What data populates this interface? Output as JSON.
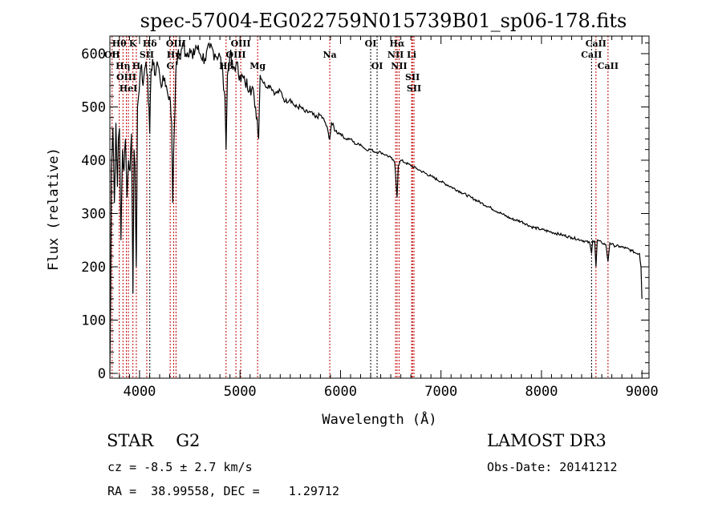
{
  "chart_data": {
    "type": "line",
    "title": "spec-57004-EG022759N015739B01_sp06-178.fits",
    "xlabel": "Wavelength (Å)",
    "ylabel": "Flux (relative)",
    "xlim": [
      3705,
      9070
    ],
    "ylim": [
      -9,
      633
    ],
    "xticks": [
      4000,
      5000,
      6000,
      7000,
      8000,
      9000
    ],
    "xtick_labels": [
      "4000",
      "5000",
      "6000",
      "7000",
      "8000",
      "9000"
    ],
    "yticks": [
      0,
      100,
      200,
      300,
      400,
      500,
      600
    ],
    "ytick_labels": [
      "0",
      "100",
      "200",
      "300",
      "400",
      "500",
      "600"
    ],
    "grid": false,
    "series": [
      {
        "name": "flux",
        "color": "#000000",
        "x": [
          3705,
          3712,
          3720,
          3735,
          3750,
          3765,
          3780,
          3790,
          3800,
          3815,
          3830,
          3845,
          3860,
          3875,
          3890,
          3905,
          3920,
          3934,
          3945,
          3955,
          3968,
          3980,
          3990,
          4005,
          4020,
          4035,
          4050,
          4065,
          4080,
          4101,
          4115,
          4130,
          4150,
          4175,
          4200,
          4225,
          4250,
          4275,
          4300,
          4320,
          4330,
          4340,
          4360,
          4380,
          4400,
          4430,
          4460,
          4500,
          4530,
          4560,
          4600,
          4650,
          4700,
          4750,
          4800,
          4830,
          4850,
          4861,
          4875,
          4900,
          4930,
          4960,
          5000,
          5050,
          5100,
          5140,
          5170,
          5185,
          5200,
          5250,
          5300,
          5350,
          5400,
          5450,
          5500,
          5550,
          5600,
          5650,
          5700,
          5750,
          5800,
          5850,
          5880,
          5893,
          5910,
          5950,
          6000,
          6050,
          6100,
          6150,
          6200,
          6250,
          6300,
          6350,
          6400,
          6450,
          6500,
          6540,
          6563,
          6575,
          6600,
          6650,
          6700,
          6750,
          6800,
          6900,
          7000,
          7100,
          7200,
          7300,
          7400,
          7500,
          7600,
          7700,
          7800,
          7900,
          8000,
          8100,
          8200,
          8300,
          8400,
          8480,
          8498,
          8510,
          8530,
          8542,
          8555,
          8600,
          8640,
          8662,
          8680,
          8720,
          8780,
          8840,
          8900,
          8950,
          8975,
          8990,
          9000
        ],
        "y": [
          0,
          140,
          380,
          460,
          320,
          470,
          350,
          440,
          460,
          250,
          420,
          380,
          440,
          330,
          400,
          380,
          450,
          150,
          420,
          390,
          200,
          500,
          520,
          560,
          580,
          540,
          570,
          585,
          560,
          450,
          570,
          590,
          560,
          585,
          560,
          540,
          555,
          530,
          520,
          470,
          320,
          420,
          560,
          600,
          590,
          620,
          600,
          610,
          590,
          615,
          600,
          590,
          610,
          600,
          595,
          560,
          520,
          420,
          560,
          600,
          570,
          580,
          560,
          545,
          540,
          520,
          480,
          440,
          560,
          540,
          540,
          525,
          530,
          510,
          515,
          500,
          500,
          490,
          490,
          480,
          485,
          470,
          450,
          440,
          470,
          455,
          450,
          440,
          440,
          430,
          430,
          420,
          420,
          415,
          415,
          410,
          405,
          395,
          330,
          390,
          400,
          395,
          390,
          385,
          380,
          370,
          360,
          350,
          340,
          330,
          320,
          310,
          300,
          290,
          285,
          275,
          270,
          265,
          260,
          255,
          250,
          245,
          225,
          250,
          248,
          200,
          250,
          245,
          242,
          210,
          245,
          240,
          238,
          235,
          230,
          225,
          225,
          200,
          140
        ]
      }
    ],
    "lines": [
      {
        "label": "OII",
        "wl": 3727,
        "row": 1,
        "color": "#c00000"
      },
      {
        "label": "Hθ",
        "wl": 3798,
        "row": 0,
        "color": "#c00000"
      },
      {
        "label": "Hη",
        "wl": 3835,
        "row": 2,
        "color": "#c00000"
      },
      {
        "label": "OIII",
        "wl": 3869,
        "row": 2,
        "color": "#c00000"
      },
      {
        "label": "HeI",
        "wl": 3889,
        "row": 1,
        "color": "#c00000"
      },
      {
        "label": "K",
        "wl": 3934,
        "row": 0,
        "color": "#c00000"
      },
      {
        "label": "H",
        "wl": 3968,
        "row": 2,
        "color": "#c00000"
      },
      {
        "label": "SII",
        "wl": 4072,
        "row": 1,
        "color": "#c00000"
      },
      {
        "label": "Hδ",
        "wl": 4102,
        "row": 0,
        "color": "#000000"
      },
      {
        "label": "G",
        "wl": 4305,
        "row": 2,
        "color": "#c00000"
      },
      {
        "label": "Hγ",
        "wl": 4340,
        "row": 1,
        "color": "#c00000"
      },
      {
        "label": "OIII",
        "wl": 4363,
        "row": 0,
        "color": "#c00000"
      },
      {
        "label": "Hβ",
        "wl": 4861,
        "row": 2,
        "color": "#c00000"
      },
      {
        "label": "OIII",
        "wl": 4959,
        "row": 1,
        "color": "#c00000"
      },
      {
        "label": "OIII",
        "wl": 5007,
        "row": 0,
        "color": "#c00000"
      },
      {
        "label": "Mg",
        "wl": 5175,
        "row": 2,
        "color": "#c00000"
      },
      {
        "label": "Na",
        "wl": 5893,
        "row": 1,
        "color": "#c00000"
      },
      {
        "label": "OI",
        "wl": 6300,
        "row": 0,
        "color": "#000000"
      },
      {
        "label": "OI",
        "wl": 6364,
        "row": 2,
        "color": "#000000"
      },
      {
        "label": "NII",
        "wl": 6548,
        "row": 1,
        "color": "#c00000"
      },
      {
        "label": "Hα",
        "wl": 6563,
        "row": 0,
        "color": "#c00000"
      },
      {
        "label": "NII",
        "wl": 6583,
        "row": 2,
        "color": "#c00000"
      },
      {
        "label": "Li",
        "wl": 6708,
        "row": 1,
        "color": "#c00000"
      },
      {
        "label": "SII",
        "wl": 6716,
        "row": 0,
        "color": "#c00000"
      },
      {
        "label": "SII",
        "wl": 6731,
        "row": 2,
        "color": "#c00000"
      },
      {
        "label": "CaII",
        "wl": 8498,
        "row": 1,
        "color": "#000000"
      },
      {
        "label": "CaII",
        "wl": 8542,
        "row": 0,
        "color": "#c00000"
      },
      {
        "label": "CaII",
        "wl": 8662,
        "row": 2,
        "color": "#c00000"
      }
    ]
  },
  "info": {
    "object_type": "STAR",
    "subclass": "G2",
    "survey": "LAMOST DR3",
    "cz": "cz = -8.5 ± 2.7 km/s",
    "obs_date": "Obs-Date: 20141212",
    "coords": "RA =  38.99558, DEC =    1.29712"
  }
}
